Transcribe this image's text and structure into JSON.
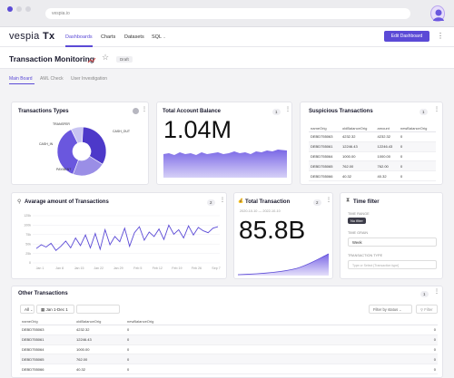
{
  "browser": {
    "url": "vespia.io"
  },
  "nav": {
    "logo_light": "vespia",
    "logo_bold": "Tx",
    "links": [
      "Dashboards",
      "Charts",
      "Datasets",
      "SQL"
    ],
    "edit_dashboard": "Edit Dashboard",
    "more": "⋮"
  },
  "page": {
    "title": "Transaction Monitoring",
    "badge": "Draft"
  },
  "tabs": [
    "Main Board",
    "AML Check",
    "User Investigation"
  ],
  "transaction_types": {
    "title": "Transactions Types",
    "chart_data": {
      "type": "pie",
      "labels": [
        "TRANSFER",
        "CASH_OUT",
        "CASH_IN",
        "PAYMENT"
      ],
      "values": [
        8,
        33,
        22,
        37
      ],
      "colors": [
        "#c8c4f2",
        "#4d39c9",
        "#9a8ee6",
        "#6a57de"
      ]
    }
  },
  "account_balance": {
    "title": "Total Account Balance",
    "badge": "1",
    "value": "1.04M"
  },
  "suspicious": {
    "title": "Suspicious Transactions",
    "badge": "1",
    "columns": [
      "nameOrig",
      "oldBalanceOrig",
      "amount",
      "newBalanceOrig"
    ],
    "rows": [
      [
        "DEBD755063",
        "4232.32",
        "4232.32",
        "0"
      ],
      [
        "DEBD755061",
        "12246.43",
        "12246.43",
        "0"
      ],
      [
        "DEBD755064",
        "1000.00",
        "1000.00",
        "0"
      ],
      [
        "DEBD755065",
        "762.00",
        "762.00",
        "0"
      ],
      [
        "DEBD755066",
        "40.32",
        "40.32",
        "0"
      ]
    ]
  },
  "avg_amount": {
    "title": "Avarage amount of Transactions",
    "badge": "2",
    "chart_data": {
      "type": "line",
      "x_ticks": [
        "Jan 1",
        "Jan 8",
        "Jan 15",
        "Jan 22",
        "Jan 29",
        "Feb 5",
        "Feb 12",
        "Feb 19",
        "Feb 26",
        "Sep 7"
      ],
      "y_ticks": [
        "125k",
        "100k",
        "75k",
        "50k",
        "25k",
        "0"
      ],
      "values": [
        38,
        48,
        42,
        52,
        33,
        44,
        58,
        40,
        66,
        46,
        74,
        40,
        78,
        36,
        88,
        48,
        70,
        56,
        92,
        44,
        80,
        96,
        60,
        82,
        70,
        90,
        62,
        100,
        76,
        88,
        66,
        98,
        74,
        94,
        85,
        80,
        92,
        96
      ],
      "ylim": [
        0,
        125
      ]
    }
  },
  "total_tx": {
    "title": "Total Transaction",
    "badge": "2",
    "range": "2020-10-10 — 2022-10-10",
    "value": "85.8B"
  },
  "time_filter": {
    "title": "Time filter",
    "time_range_label": "TIME RANGE",
    "time_range_value": "No filter",
    "time_grain_label": "TIME GRAIN",
    "time_grain_value": "Week",
    "tx_type_label": "TRANSACTION TYPE",
    "tx_type_placeholder": "Type or Select [Transaction type]"
  },
  "other": {
    "title": "Other Transactions",
    "badge": "1",
    "page_size": "All",
    "date_range": "Jan 1-Dec 1",
    "filter_status": "Filter by status",
    "filter_btn": "Filter",
    "columns": [
      "nameOrig",
      "oldBalanceOrig",
      "newBalanceOrig"
    ],
    "rows": [
      [
        "DEBD755063",
        "4232.32",
        "0"
      ],
      [
        "DEBD755061",
        "12246.43",
        "0"
      ],
      [
        "DEBD755064",
        "1000.00",
        "0"
      ],
      [
        "DEBD755065",
        "762.00",
        "0"
      ],
      [
        "DEBD755066",
        "40.32",
        "0"
      ]
    ]
  },
  "colors": {
    "accent": "#5b4ad6",
    "chart_fill": "#8b7bea"
  }
}
